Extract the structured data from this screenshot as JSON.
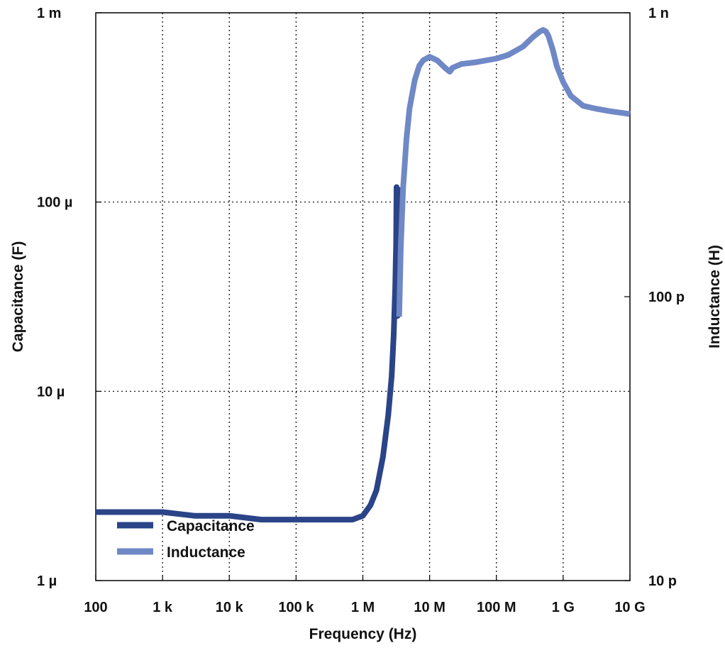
{
  "chart_data": {
    "type": "line",
    "xlabel": "Frequency (Hz)",
    "ylabel_left": "Capacitance (F)",
    "ylabel_right": "Inductance (H)",
    "x_scale": "log",
    "y_left_scale": "log",
    "y_right_scale": "log",
    "xlim": [
      100,
      10000000000
    ],
    "ylim_left": [
      1e-06,
      0.001
    ],
    "ylim_right": [
      1e-11,
      1e-09
    ],
    "grid": true,
    "legend_position": "bottom-left",
    "x_ticks": [
      {
        "value": 100,
        "label": "100"
      },
      {
        "value": 1000,
        "label": "1 k"
      },
      {
        "value": 10000,
        "label": "10 k"
      },
      {
        "value": 100000,
        "label": "100 k"
      },
      {
        "value": 1000000,
        "label": "1 M"
      },
      {
        "value": 10000000,
        "label": "10 M"
      },
      {
        "value": 100000000,
        "label": "100 M"
      },
      {
        "value": 1000000000,
        "label": "1 G"
      },
      {
        "value": 10000000000,
        "label": "10 G"
      }
    ],
    "y_left_ticks": [
      {
        "value": 1e-06,
        "label": "1 µ"
      },
      {
        "value": 1e-05,
        "label": "10 µ"
      },
      {
        "value": 0.0001,
        "label": "100 µ"
      },
      {
        "value": 0.001,
        "label": "1 m"
      }
    ],
    "y_right_ticks": [
      {
        "value": 1e-11,
        "label": "10 p"
      },
      {
        "value": 1e-10,
        "label": "100 p"
      },
      {
        "value": 1e-09,
        "label": "1 n"
      }
    ],
    "series": [
      {
        "name": "Capacitance",
        "axis": "left",
        "color": "#2b4488",
        "x": [
          100,
          300,
          1000,
          3000,
          10000,
          30000,
          100000,
          200000,
          300000,
          500000,
          700000,
          1000000,
          1300000,
          1600000,
          2000000,
          2400000,
          2700000,
          2900000,
          3050000,
          3150000,
          3200000,
          3300000,
          3400000,
          3500000
        ],
        "y": [
          2.3e-06,
          2.3e-06,
          2.3e-06,
          2.2e-06,
          2.2e-06,
          2.1e-06,
          2.1e-06,
          2.1e-06,
          2.1e-06,
          2.1e-06,
          2.1e-06,
          2.2e-06,
          2.5e-06,
          3e-06,
          4.5e-06,
          7.5e-06,
          1.2e-05,
          2e-05,
          3.5e-05,
          6e-05,
          0.00012,
          2.5e-05,
          6e-05,
          0.00012
        ]
      },
      {
        "name": "Inductance",
        "axis": "right",
        "color": "#6f88c6",
        "x": [
          3500000,
          3700000,
          4000000,
          4500000,
          5000000,
          6000000,
          7000000,
          8000000,
          10000000,
          13000000,
          17000000,
          20000000,
          22000000,
          30000000,
          50000000,
          100000000,
          150000000,
          250000000,
          350000000,
          450000000,
          500000000,
          550000000,
          600000000,
          700000000,
          800000000,
          1000000000,
          1300000000,
          2000000000,
          3000000000,
          5000000000,
          10000000000
        ],
        "y": [
          8.5e-11,
          1.5e-10,
          2.4e-10,
          3.6e-10,
          4.6e-10,
          5.8e-10,
          6.5e-10,
          6.8e-10,
          7e-10,
          6.8e-10,
          6.4e-10,
          6.2e-10,
          6.4e-10,
          6.6e-10,
          6.7e-10,
          6.9e-10,
          7.1e-10,
          7.6e-10,
          8.2e-10,
          8.6e-10,
          8.7e-10,
          8.6e-10,
          8.3e-10,
          7.4e-10,
          6.5e-10,
          5.7e-10,
          5.1e-10,
          4.7e-10,
          4.6e-10,
          4.5e-10,
          4.4e-10
        ]
      }
    ]
  }
}
